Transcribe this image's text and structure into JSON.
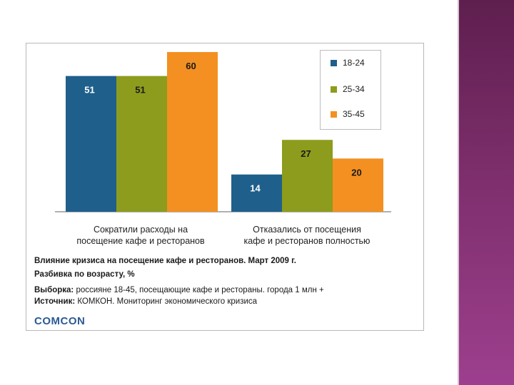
{
  "chart_data": {
    "type": "bar",
    "categories": [
      "Сократили расходы на посещение кафе и ресторанов",
      "Отказались от посещения кафе и ресторанов полностью"
    ],
    "category_lines": [
      [
        "Сократили расходы на",
        "посещение кафе и ресторанов"
      ],
      [
        "Отказались от посещения",
        "кафе и ресторанов полностью"
      ]
    ],
    "series": [
      {
        "name": "18-24",
        "color": "#1f5f8b",
        "values": [
          51,
          14
        ]
      },
      {
        "name": "25-34",
        "color": "#8d9c1d",
        "values": [
          51,
          27
        ]
      },
      {
        "name": "35-45",
        "color": "#f39021",
        "values": [
          60,
          20
        ]
      }
    ],
    "ylim": [
      0,
      60
    ],
    "legend_position": "top-right",
    "grid": false,
    "data_labels": true
  },
  "caption": {
    "title_line1": "Влияние кризиса на посещение кафе и ресторанов. Март 2009 г.",
    "title_line2": "Разбивка по возрасту, %",
    "sample_label": "Выборка:",
    "sample_text": " россияне 18-45, посещающие кафе и рестораны. города 1 млн +",
    "source_label": "Источник:",
    "source_text": " КОМКОН. Мониторинг экономического кризиса"
  },
  "logo_text": "COMCON",
  "colors": {
    "accent_band": "#7d2e6c"
  }
}
